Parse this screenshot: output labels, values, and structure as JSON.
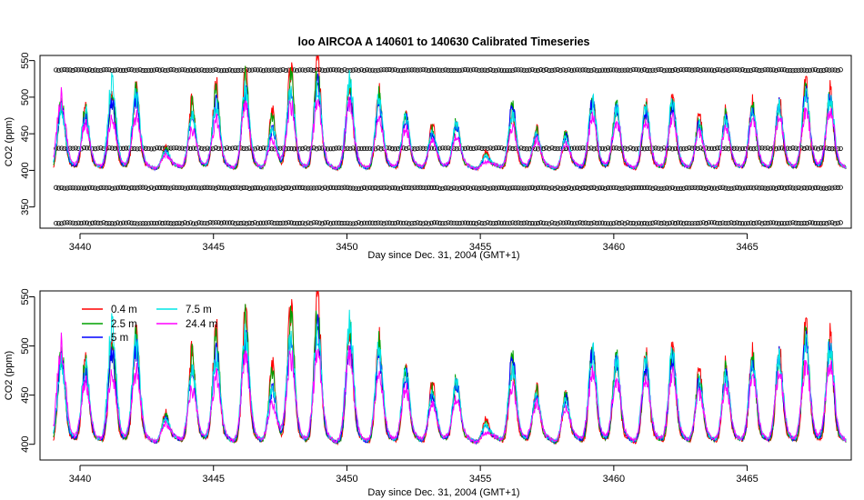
{
  "chart_data": [
    {
      "type": "line",
      "title": "loo   AIRCOA  A    140601  to  140630   Calibrated Timeseries",
      "xlabel": "Day since Dec. 31, 2004 (GMT+1)",
      "ylabel": "CO2 (ppm)",
      "xlim": [
        3438.5,
        3468.9
      ],
      "ylim": [
        321,
        557
      ],
      "xticks": [
        "3440",
        "3445",
        "3450",
        "3455",
        "3460",
        "3465"
      ],
      "yticks": [
        "350",
        "400",
        "450",
        "500",
        "550"
      ],
      "grid": false,
      "calibration_levels_ppm": [
        537,
        430,
        376,
        328
      ],
      "spike_days": [
        3439.3,
        3440.2,
        3441.2,
        3442.1,
        3443.2,
        3444.2,
        3445.1,
        3446.2,
        3447.2,
        3447.9,
        3448.9,
        3450.1,
        3451.2,
        3452.2,
        3453.2,
        3454.1,
        3455.2,
        3456.2,
        3457.1,
        3458.2,
        3459.2,
        3460.1,
        3461.2,
        3462.2,
        3463.2,
        3464.2,
        3465.2,
        3466.2,
        3467.2,
        3468.1
      ],
      "series": [
        {
          "name": "0.4 m",
          "color": "#ff0000",
          "peak_values": [
            495,
            485,
            505,
            510,
            430,
            495,
            515,
            530,
            480,
            538,
            550,
            520,
            505,
            480,
            460,
            470,
            425,
            480,
            455,
            450,
            500,
            490,
            490,
            495,
            475,
            480,
            490,
            495,
            520,
            508
          ]
        },
        {
          "name": "2.5 m",
          "color": "#00a000",
          "peak_values": [
            490,
            480,
            500,
            505,
            428,
            488,
            505,
            522,
            470,
            528,
            530,
            512,
            498,
            475,
            455,
            465,
            420,
            485,
            452,
            448,
            495,
            485,
            485,
            490,
            468,
            475,
            485,
            490,
            512,
            500
          ]
        },
        {
          "name": "5 m",
          "color": "#0000ff",
          "peak_values": [
            485,
            470,
            490,
            498,
            425,
            470,
            490,
            505,
            455,
            510,
            515,
            505,
            490,
            470,
            450,
            460,
            418,
            488,
            450,
            446,
            490,
            480,
            480,
            485,
            462,
            470,
            480,
            485,
            505,
            495
          ]
        },
        {
          "name": "7.5 m",
          "color": "#00e5e5",
          "peak_values": [
            480,
            478,
            518,
            500,
            424,
            472,
            488,
            508,
            458,
            505,
            512,
            520,
            495,
            472,
            452,
            462,
            417,
            476,
            448,
            444,
            492,
            482,
            482,
            492,
            460,
            468,
            478,
            483,
            500,
            498
          ]
        },
        {
          "name": "24.4 m",
          "color": "#ff00ff",
          "peak_values": [
            498,
            460,
            470,
            470,
            420,
            455,
            465,
            485,
            440,
            485,
            490,
            490,
            470,
            455,
            440,
            445,
            410,
            455,
            440,
            435,
            470,
            465,
            465,
            470,
            450,
            455,
            465,
            470,
            480,
            480
          ]
        }
      ]
    },
    {
      "type": "line",
      "title": "",
      "xlabel": "Day since Dec. 31, 2004 (GMT+1)",
      "ylabel": "CO2 (ppm)",
      "xlim": [
        3438.5,
        3468.9
      ],
      "ylim": [
        384,
        556
      ],
      "xticks": [
        "3440",
        "3445",
        "3450",
        "3455",
        "3460",
        "3465"
      ],
      "yticks": [
        "400",
        "450",
        "500",
        "550"
      ],
      "grid": false,
      "legend": {
        "placement": "top-left",
        "entries": [
          {
            "name": "0.4 m",
            "color": "#ff0000"
          },
          {
            "name": "2.5 m",
            "color": "#00a000"
          },
          {
            "name": "5 m",
            "color": "#0000ff"
          },
          {
            "name": "7.5 m",
            "color": "#00e5e5"
          },
          {
            "name": "24.4 m",
            "color": "#ff00ff"
          }
        ]
      }
    }
  ]
}
